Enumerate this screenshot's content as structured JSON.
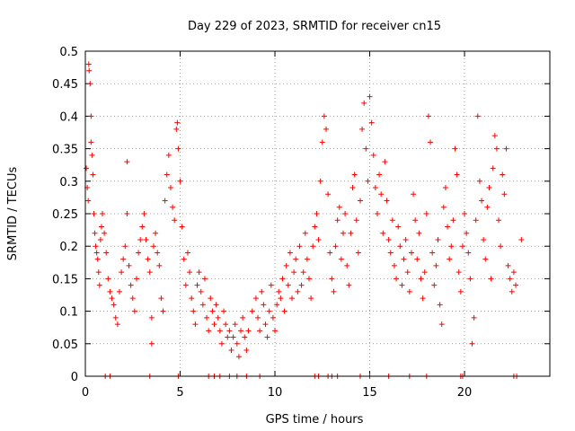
{
  "chart_data": {
    "type": "scatter",
    "title": "Day 229 of 2023, SRMTID for receiver cn15",
    "xlabel": "GPS time / hours",
    "ylabel": "SRMTID / TECUs",
    "xlim": [
      0,
      24.5
    ],
    "ylim": [
      0,
      0.5
    ],
    "xticks": [
      0,
      5,
      10,
      15,
      20
    ],
    "xtick_labels": [
      "0",
      "5",
      "10",
      "15",
      "20"
    ],
    "yticks": [
      0,
      0.05,
      0.1,
      0.15,
      0.2,
      0.25,
      0.3,
      0.35,
      0.4,
      0.45,
      0.5
    ],
    "ytick_labels": [
      "0",
      "0.05",
      "0.1",
      "0.15",
      "0.2",
      "0.25",
      "0.3",
      "0.35",
      "0.4",
      "0.45",
      "0.5"
    ],
    "grid": true,
    "marker": "+",
    "color": "#ff0000",
    "series": [
      {
        "name": "SRMTID",
        "points": [
          [
            0.05,
            0.32
          ],
          [
            0.1,
            0.29
          ],
          [
            0.15,
            0.27
          ],
          [
            0.18,
            0.48
          ],
          [
            0.2,
            0.47
          ],
          [
            0.25,
            0.45
          ],
          [
            0.3,
            0.4
          ],
          [
            0.3,
            0.36
          ],
          [
            0.35,
            0.34
          ],
          [
            0.4,
            0.31
          ],
          [
            0.45,
            0.25
          ],
          [
            0.5,
            0.22
          ],
          [
            0.55,
            0.2
          ],
          [
            0.6,
            0.19
          ],
          [
            0.65,
            0.18
          ],
          [
            0.7,
            0.16
          ],
          [
            0.75,
            0.14
          ],
          [
            0.8,
            0.21
          ],
          [
            0.85,
            0.23
          ],
          [
            0.9,
            0.25
          ],
          [
            1.0,
            0.22
          ],
          [
            1.1,
            0.19
          ],
          [
            1.2,
            0.15
          ],
          [
            1.3,
            0.13
          ],
          [
            1.4,
            0.12
          ],
          [
            1.5,
            0.11
          ],
          [
            1.6,
            0.09
          ],
          [
            1.7,
            0.08
          ],
          [
            1.8,
            0.13
          ],
          [
            1.9,
            0.16
          ],
          [
            2.0,
            0.18
          ],
          [
            2.1,
            0.2
          ],
          [
            2.2,
            0.25
          ],
          [
            2.2,
            0.33
          ],
          [
            2.3,
            0.17
          ],
          [
            2.4,
            0.14
          ],
          [
            2.5,
            0.12
          ],
          [
            2.6,
            0.1
          ],
          [
            2.7,
            0.15
          ],
          [
            2.8,
            0.19
          ],
          [
            2.9,
            0.21
          ],
          [
            3.0,
            0.23
          ],
          [
            3.1,
            0.25
          ],
          [
            3.2,
            0.21
          ],
          [
            3.3,
            0.18
          ],
          [
            3.4,
            0.16
          ],
          [
            3.5,
            0.09
          ],
          [
            3.5,
            0.05
          ],
          [
            3.6,
            0.2
          ],
          [
            3.7,
            0.22
          ],
          [
            3.8,
            0.19
          ],
          [
            3.9,
            0.17
          ],
          [
            4.0,
            0.12
          ],
          [
            4.1,
            0.1
          ],
          [
            4.2,
            0.27
          ],
          [
            4.3,
            0.31
          ],
          [
            4.4,
            0.34
          ],
          [
            4.5,
            0.29
          ],
          [
            4.6,
            0.26
          ],
          [
            4.7,
            0.24
          ],
          [
            4.8,
            0.38
          ],
          [
            4.85,
            0.39
          ],
          [
            4.9,
            0.35
          ],
          [
            5.0,
            0.3
          ],
          [
            5.1,
            0.23
          ],
          [
            5.2,
            0.18
          ],
          [
            5.3,
            0.14
          ],
          [
            5.4,
            0.19
          ],
          [
            5.5,
            0.16
          ],
          [
            5.6,
            0.12
          ],
          [
            5.7,
            0.1
          ],
          [
            5.8,
            0.08
          ],
          [
            5.9,
            0.14
          ],
          [
            6.0,
            0.16
          ],
          [
            6.1,
            0.13
          ],
          [
            6.2,
            0.11
          ],
          [
            6.3,
            0.15
          ],
          [
            6.4,
            0.09
          ],
          [
            6.5,
            0.07
          ],
          [
            6.6,
            0.12
          ],
          [
            6.7,
            0.1
          ],
          [
            6.8,
            0.08
          ],
          [
            6.9,
            0.11
          ],
          [
            7.0,
            0.09
          ],
          [
            7.1,
            0.07
          ],
          [
            7.2,
            0.05
          ],
          [
            7.3,
            0.1
          ],
          [
            7.4,
            0.08
          ],
          [
            7.5,
            0.06
          ],
          [
            7.6,
            0.07
          ],
          [
            7.7,
            0.04
          ],
          [
            7.8,
            0.06
          ],
          [
            7.9,
            0.08
          ],
          [
            8.0,
            0.05
          ],
          [
            8.1,
            0.03
          ],
          [
            8.2,
            0.07
          ],
          [
            8.3,
            0.09
          ],
          [
            8.4,
            0.06
          ],
          [
            8.5,
            0.04
          ],
          [
            8.6,
            0.07
          ],
          [
            8.8,
            0.1
          ],
          [
            9.0,
            0.12
          ],
          [
            9.1,
            0.09
          ],
          [
            9.2,
            0.07
          ],
          [
            9.3,
            0.13
          ],
          [
            9.4,
            0.11
          ],
          [
            9.5,
            0.08
          ],
          [
            9.6,
            0.06
          ],
          [
            9.7,
            0.1
          ],
          [
            9.8,
            0.14
          ],
          [
            9.9,
            0.09
          ],
          [
            10.0,
            0.07
          ],
          [
            10.1,
            0.11
          ],
          [
            10.2,
            0.13
          ],
          [
            10.3,
            0.12
          ],
          [
            10.4,
            0.15
          ],
          [
            10.5,
            0.1
          ],
          [
            10.6,
            0.17
          ],
          [
            10.7,
            0.14
          ],
          [
            10.8,
            0.19
          ],
          [
            10.9,
            0.12
          ],
          [
            11.0,
            0.16
          ],
          [
            11.1,
            0.18
          ],
          [
            11.2,
            0.13
          ],
          [
            11.3,
            0.2
          ],
          [
            11.4,
            0.14
          ],
          [
            11.5,
            0.16
          ],
          [
            11.6,
            0.22
          ],
          [
            11.7,
            0.18
          ],
          [
            11.8,
            0.15
          ],
          [
            11.9,
            0.12
          ],
          [
            12.0,
            0.2
          ],
          [
            12.1,
            0.23
          ],
          [
            12.2,
            0.25
          ],
          [
            12.3,
            0.21
          ],
          [
            12.4,
            0.3
          ],
          [
            12.5,
            0.36
          ],
          [
            12.6,
            0.4
          ],
          [
            12.7,
            0.38
          ],
          [
            12.8,
            0.28
          ],
          [
            12.9,
            0.19
          ],
          [
            13.0,
            0.15
          ],
          [
            13.1,
            0.13
          ],
          [
            13.2,
            0.2
          ],
          [
            13.3,
            0.24
          ],
          [
            13.4,
            0.26
          ],
          [
            13.5,
            0.18
          ],
          [
            13.6,
            0.22
          ],
          [
            13.7,
            0.25
          ],
          [
            13.8,
            0.17
          ],
          [
            13.9,
            0.14
          ],
          [
            14.0,
            0.22
          ],
          [
            14.1,
            0.29
          ],
          [
            14.2,
            0.31
          ],
          [
            14.3,
            0.24
          ],
          [
            14.4,
            0.19
          ],
          [
            14.5,
            0.27
          ],
          [
            14.6,
            0.38
          ],
          [
            14.7,
            0.42
          ],
          [
            14.8,
            0.35
          ],
          [
            14.9,
            0.3
          ],
          [
            15.0,
            0.43
          ],
          [
            15.1,
            0.39
          ],
          [
            15.2,
            0.34
          ],
          [
            15.3,
            0.29
          ],
          [
            15.4,
            0.25
          ],
          [
            15.5,
            0.31
          ],
          [
            15.6,
            0.28
          ],
          [
            15.7,
            0.22
          ],
          [
            15.8,
            0.33
          ],
          [
            15.9,
            0.27
          ],
          [
            16.0,
            0.21
          ],
          [
            16.1,
            0.19
          ],
          [
            16.2,
            0.24
          ],
          [
            16.3,
            0.17
          ],
          [
            16.4,
            0.15
          ],
          [
            16.5,
            0.23
          ],
          [
            16.6,
            0.2
          ],
          [
            16.7,
            0.14
          ],
          [
            16.8,
            0.18
          ],
          [
            16.9,
            0.21
          ],
          [
            17.0,
            0.16
          ],
          [
            17.1,
            0.13
          ],
          [
            17.2,
            0.19
          ],
          [
            17.3,
            0.28
          ],
          [
            17.4,
            0.24
          ],
          [
            17.5,
            0.18
          ],
          [
            17.6,
            0.22
          ],
          [
            17.7,
            0.15
          ],
          [
            17.8,
            0.12
          ],
          [
            17.9,
            0.16
          ],
          [
            18.0,
            0.25
          ],
          [
            18.1,
            0.4
          ],
          [
            18.2,
            0.36
          ],
          [
            18.3,
            0.19
          ],
          [
            18.4,
            0.14
          ],
          [
            18.5,
            0.17
          ],
          [
            18.6,
            0.21
          ],
          [
            18.7,
            0.11
          ],
          [
            18.8,
            0.08
          ],
          [
            18.9,
            0.26
          ],
          [
            19.0,
            0.29
          ],
          [
            19.1,
            0.23
          ],
          [
            19.2,
            0.18
          ],
          [
            19.3,
            0.2
          ],
          [
            19.4,
            0.24
          ],
          [
            19.5,
            0.35
          ],
          [
            19.6,
            0.31
          ],
          [
            19.7,
            0.16
          ],
          [
            19.8,
            0.13
          ],
          [
            19.9,
            0.2
          ],
          [
            20.0,
            0.25
          ],
          [
            20.1,
            0.22
          ],
          [
            20.2,
            0.19
          ],
          [
            20.3,
            0.15
          ],
          [
            20.4,
            0.05
          ],
          [
            20.5,
            0.09
          ],
          [
            20.6,
            0.24
          ],
          [
            20.7,
            0.4
          ],
          [
            20.8,
            0.3
          ],
          [
            20.9,
            0.27
          ],
          [
            21.0,
            0.21
          ],
          [
            21.1,
            0.18
          ],
          [
            21.2,
            0.26
          ],
          [
            21.3,
            0.29
          ],
          [
            21.4,
            0.15
          ],
          [
            21.5,
            0.32
          ],
          [
            21.6,
            0.37
          ],
          [
            21.7,
            0.35
          ],
          [
            21.8,
            0.24
          ],
          [
            21.9,
            0.2
          ],
          [
            22.0,
            0.31
          ],
          [
            22.1,
            0.28
          ],
          [
            22.2,
            0.35
          ],
          [
            22.3,
            0.17
          ],
          [
            22.4,
            0.15
          ],
          [
            22.5,
            0.13
          ],
          [
            22.6,
            0.16
          ],
          [
            22.7,
            0.14
          ],
          [
            23.0,
            0.21
          ],
          [
            1.05,
            0
          ],
          [
            1.3,
            0
          ],
          [
            3.4,
            0
          ],
          [
            4.9,
            0
          ],
          [
            6.5,
            0
          ],
          [
            6.8,
            0
          ],
          [
            7.1,
            0
          ],
          [
            7.6,
            0
          ],
          [
            8.0,
            0
          ],
          [
            8.5,
            0
          ],
          [
            9.2,
            0
          ],
          [
            12.1,
            0
          ],
          [
            12.3,
            0
          ],
          [
            12.8,
            0
          ],
          [
            13.0,
            0
          ],
          [
            13.3,
            0
          ],
          [
            14.5,
            0
          ],
          [
            15.0,
            0
          ],
          [
            16.0,
            0
          ],
          [
            17.1,
            0
          ],
          [
            18.0,
            0
          ],
          [
            19.8,
            0
          ],
          [
            19.9,
            0
          ],
          [
            22.6,
            0
          ],
          [
            22.75,
            0
          ]
        ]
      }
    ]
  }
}
